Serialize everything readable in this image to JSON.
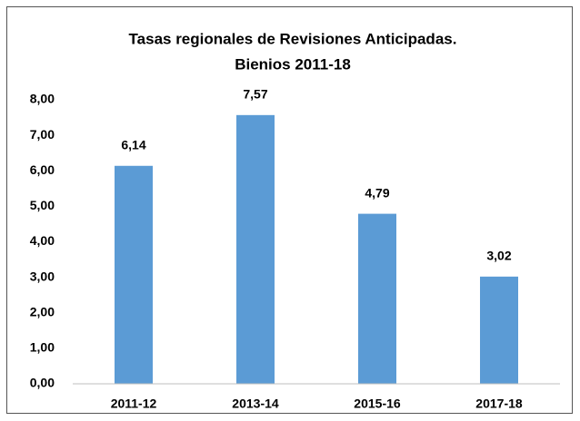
{
  "chart_data": {
    "type": "bar",
    "title": [
      "Tasas regionales de Revisiones Anticipadas.",
      "Bienios 2011-18"
    ],
    "categories": [
      "2011-12",
      "2013-14",
      "2015-16",
      "2017-18"
    ],
    "values": [
      6.14,
      7.57,
      4.79,
      3.02
    ],
    "value_labels": [
      "6,14",
      "7,57",
      "4,79",
      "3,02"
    ],
    "color": "#5b9bd5",
    "ylim": [
      0,
      8
    ],
    "yticks": [
      {
        "value": 0,
        "label": "0,00"
      },
      {
        "value": 1,
        "label": "1,00"
      },
      {
        "value": 2,
        "label": "2,00"
      },
      {
        "value": 3,
        "label": "3,00"
      },
      {
        "value": 4,
        "label": "4,00"
      },
      {
        "value": 5,
        "label": "5,00"
      },
      {
        "value": 6,
        "label": "6,00"
      },
      {
        "value": 7,
        "label": "7,00"
      },
      {
        "value": 8,
        "label": "8,00"
      }
    ],
    "grid": false
  }
}
